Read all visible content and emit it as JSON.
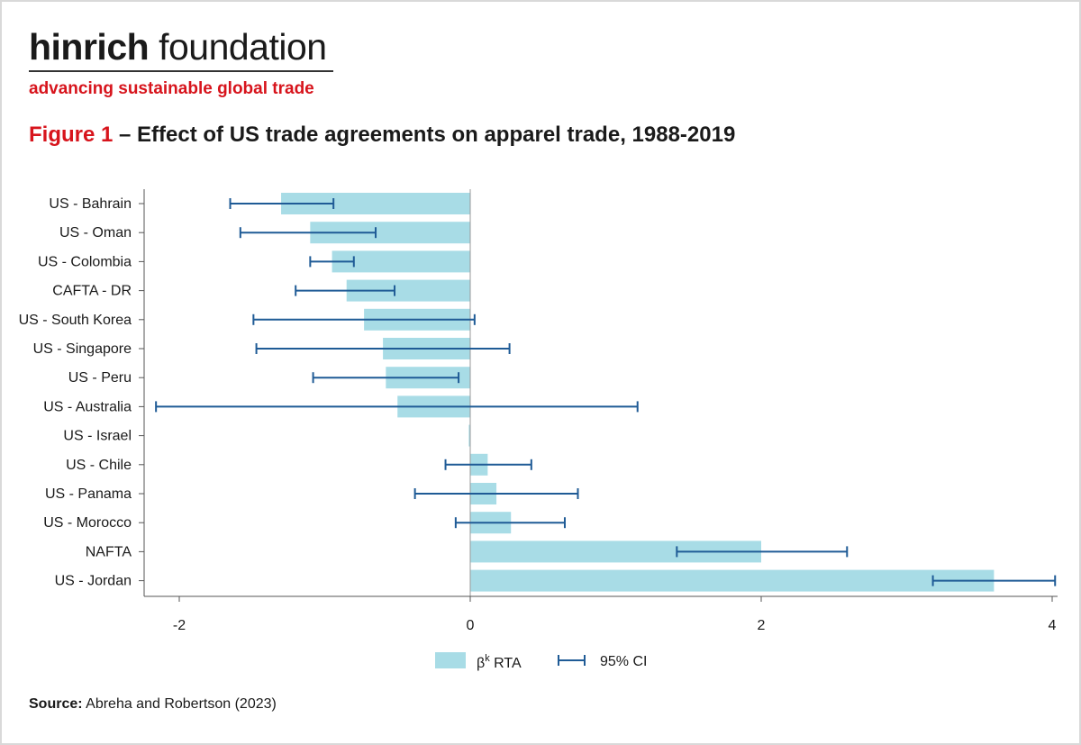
{
  "brand": {
    "name_bold": "hinrich",
    "name_light": " foundation",
    "tagline": "advancing sustainable global trade"
  },
  "figure": {
    "number": "Figure 1",
    "title": " – Effect of US trade agreements on apparel trade, 1988-2019"
  },
  "source": {
    "label": "Source:",
    "text": " Abreha and Robertson (2023)"
  },
  "colors": {
    "bar": "#a8dce6",
    "ci": "#1f5b96",
    "axis": "#555555",
    "zero_line": "#999999",
    "accent_red": "#d7141c"
  },
  "chart_data": {
    "type": "bar",
    "orientation": "horizontal",
    "categories": [
      "US - Bahrain",
      "US - Oman",
      "US - Colombia",
      "CAFTA - DR",
      "US - South Korea",
      "US - Singapore",
      "US - Peru",
      "US - Australia",
      "US - Israel",
      "US - Chile",
      "US - Panama",
      "US - Morocco",
      "NAFTA",
      "US - Jordan"
    ],
    "series": [
      {
        "name": "βᵏ RTA",
        "values": [
          -1.3,
          -1.1,
          -0.95,
          -0.85,
          -0.73,
          -0.6,
          -0.58,
          -0.5,
          -0.01,
          0.12,
          0.18,
          0.28,
          2.0,
          3.6
        ]
      },
      {
        "name": "95% CI",
        "lower": [
          -1.65,
          -1.58,
          -1.1,
          -1.2,
          -1.49,
          -1.47,
          -1.08,
          -2.16,
          null,
          -0.17,
          -0.38,
          -0.1,
          1.42,
          3.18
        ],
        "upper": [
          -0.94,
          -0.65,
          -0.8,
          -0.52,
          0.03,
          0.27,
          -0.08,
          1.15,
          null,
          0.42,
          0.74,
          0.65,
          2.59,
          4.02
        ]
      }
    ],
    "xticks": [
      -2,
      0,
      2,
      4
    ],
    "xlim": [
      -2.25,
      4.05
    ],
    "legend": {
      "bar_prefix": "β",
      "bar_sup": "k",
      "bar_suffix": " RTA",
      "ci": "95% CI",
      "position": "bottom-center"
    },
    "grid": false
  }
}
